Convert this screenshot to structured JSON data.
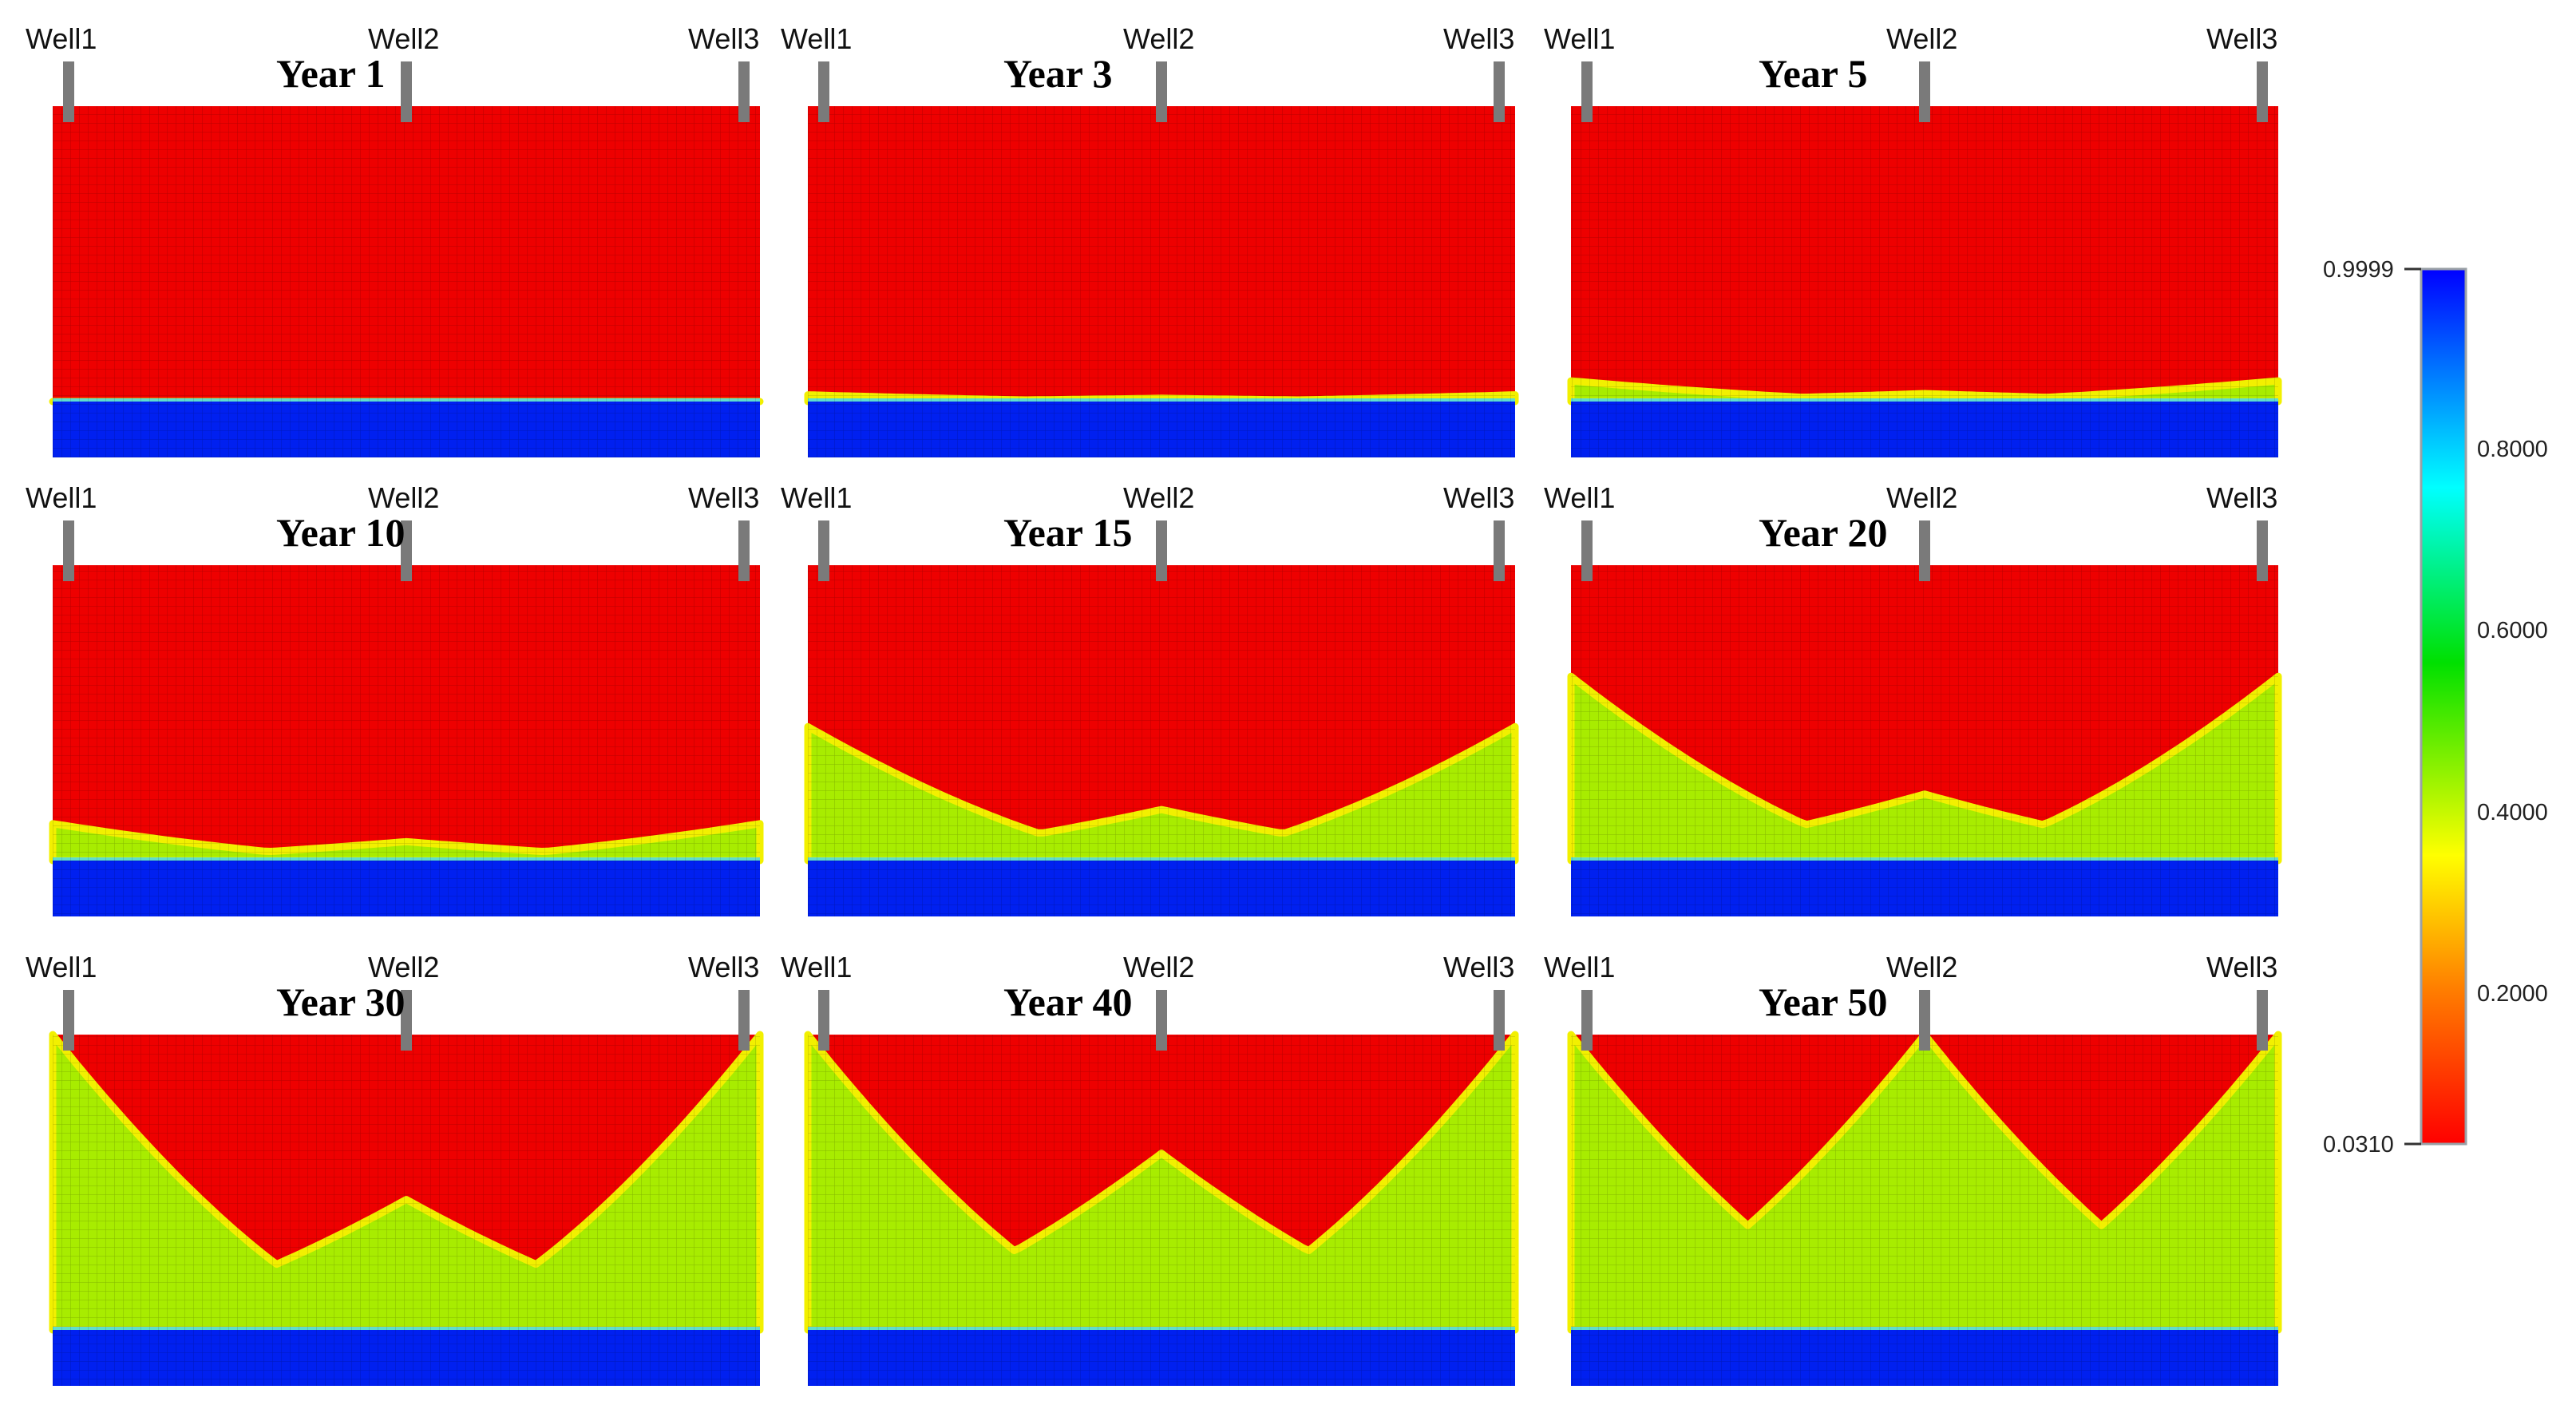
{
  "figure": {
    "wells": [
      "Well1",
      "Well2",
      "Well3"
    ],
    "colorbar": {
      "min": "0.0310",
      "max": "0.9999",
      "ticks": [
        "0.8000",
        "0.6000",
        "0.4000",
        "0.2000"
      ],
      "colors": [
        "#ff0000",
        "#ff8000",
        "#ffff00",
        "#00e000",
        "#00ffff",
        "#0000ff"
      ]
    },
    "panels": [
      {
        "year": "Year 1",
        "cone_side": 0.0,
        "cone_center": 0.0
      },
      {
        "year": "Year 3",
        "cone_side": 0.08,
        "cone_center": 0.05
      },
      {
        "year": "Year 5",
        "cone_side": 0.17,
        "cone_center": 0.09
      },
      {
        "year": "Year 10",
        "cone_side": 0.25,
        "cone_center": 0.16
      },
      {
        "year": "Year 15",
        "cone_side": 0.59,
        "cone_center": 0.31
      },
      {
        "year": "Year 20",
        "cone_side": 0.73,
        "cone_center": 0.37
      },
      {
        "year": "Year 30",
        "cone_side": 1.0,
        "cone_center": 0.58
      },
      {
        "year": "Year 40",
        "cone_side": 1.0,
        "cone_center": 0.71
      },
      {
        "year": "Year 50",
        "cone_side": 1.0,
        "cone_center": 1.0
      }
    ]
  }
}
